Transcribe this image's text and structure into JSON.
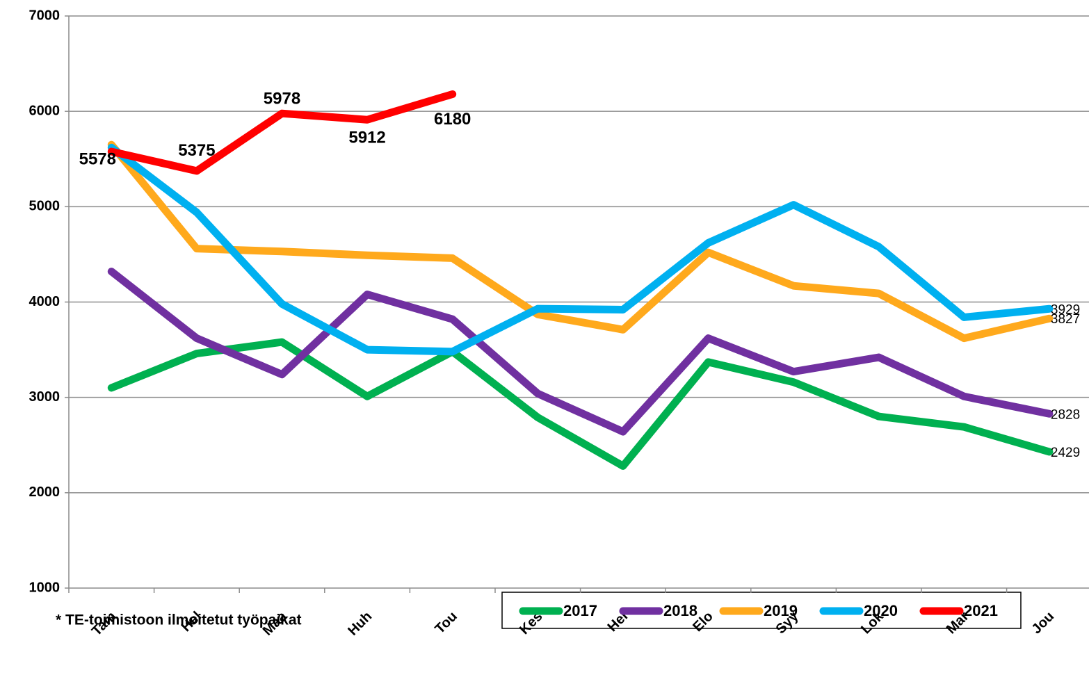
{
  "chart_data": {
    "type": "line",
    "categories": [
      "Tam",
      "Hel",
      "Maa",
      "Huh",
      "Tou",
      "Kes",
      "Hei",
      "Elo",
      "Syy",
      "Lok",
      "Mar",
      "Jou"
    ],
    "series": [
      {
        "name": "2017",
        "color": "#00b050",
        "labels": "last",
        "values": [
          3100,
          3460,
          3580,
          3010,
          3480,
          2790,
          2280,
          3370,
          3160,
          2800,
          2690,
          2429
        ]
      },
      {
        "name": "2018",
        "color": "#7030a0",
        "labels": "last",
        "values": [
          4320,
          3620,
          3240,
          4080,
          3820,
          3040,
          2640,
          3620,
          3270,
          3420,
          3010,
          2828
        ]
      },
      {
        "name": "2019",
        "color": "#ffa91c",
        "labels": "last",
        "values": [
          5650,
          4560,
          4530,
          4490,
          4460,
          3870,
          3710,
          4520,
          4170,
          4090,
          3620,
          3827
        ]
      },
      {
        "name": "2020",
        "color": "#00b0f0",
        "labels": "last",
        "values": [
          5620,
          4940,
          3980,
          3500,
          3480,
          3930,
          3920,
          4620,
          5020,
          4580,
          3840,
          3929
        ]
      },
      {
        "name": "2021",
        "color": "#ff0000",
        "labels": "all",
        "values": [
          5578,
          5375,
          5978,
          5912,
          6180,
          null,
          null,
          null,
          null,
          null,
          null,
          null
        ]
      }
    ],
    "ylim": [
      1000,
      7000
    ],
    "yticks": [
      1000,
      2000,
      3000,
      4000,
      5000,
      6000,
      7000
    ],
    "grid": true,
    "legend": "bottom",
    "note": "* TE-toimistoon ilmoitetut työpaikat"
  }
}
